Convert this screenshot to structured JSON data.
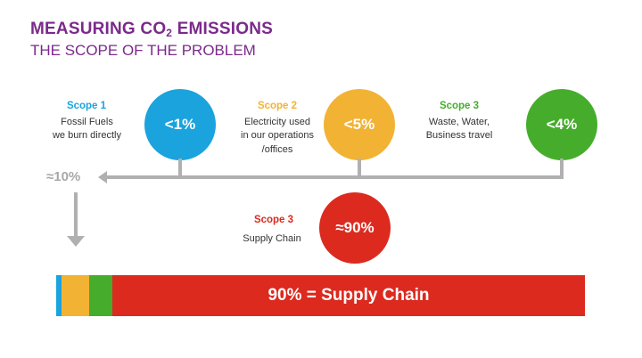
{
  "header": {
    "title_main": "MEASURING CO",
    "title_sub": "2",
    "title_end": " EMISSIONS",
    "subtitle": "THE SCOPE OF THE PROBLEM"
  },
  "colors": {
    "scope1": "#1aa3dd",
    "scope2": "#f2b233",
    "scope3_other": "#46ad2c",
    "scope3_supply": "#dc2a1f",
    "connector": "#b0b0b0",
    "title": "#7b2a8b"
  },
  "scopes": [
    {
      "heading": "Scope 1",
      "desc_line1": "Fossil Fuels",
      "desc_line2": "we burn directly",
      "desc_line3": "",
      "value": "<1%"
    },
    {
      "heading": "Scope 2",
      "desc_line1": "Electricity used",
      "desc_line2": "in our operations",
      "desc_line3": "/offices",
      "value": "<5%"
    },
    {
      "heading": "Scope 3",
      "desc_line1": "Waste, Water,",
      "desc_line2": "Business travel",
      "desc_line3": "",
      "value": "<4%"
    }
  ],
  "subtotal": "≈10%",
  "supply_chain": {
    "heading": "Scope 3",
    "desc": "Supply Chain",
    "value": "≈90%"
  },
  "stacked_bar": {
    "label": "90% = Supply Chain",
    "segments": [
      {
        "name": "scope1",
        "share": 1,
        "color": "#1aa3dd"
      },
      {
        "name": "scope2",
        "share": 5,
        "color": "#f2b233"
      },
      {
        "name": "scope3-other",
        "share": 4,
        "color": "#46ad2c"
      },
      {
        "name": "supply-chain",
        "share": 90,
        "color": "#dc2a1f"
      }
    ]
  }
}
